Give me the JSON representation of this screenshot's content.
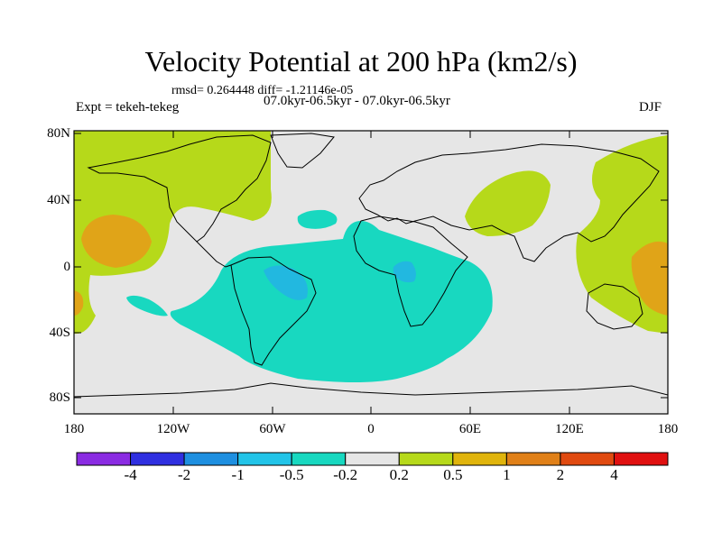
{
  "title": "Velocity Potential at 200 hPa (km2/s)",
  "stats_line": "rmsd= 0.264448 diff= -1.21146e-05",
  "experiment": "Expt = tekeh-tekeg",
  "period": "07.0kyr-06.5kyr - 07.0kyr-06.5kyr",
  "season": "DJF",
  "lat_labels": [
    "80N",
    "40N",
    "0",
    "40S",
    "80S"
  ],
  "lon_labels": [
    "180",
    "120W",
    "60W",
    "0",
    "60E",
    "120E",
    "180"
  ],
  "colorbar": {
    "labels": [
      "-4",
      "-2",
      "-1",
      "-0.5",
      "-0.2",
      "0.2",
      "0.5",
      "1",
      "2",
      "4"
    ],
    "colors": [
      "#8a2be2",
      "#2f2fe0",
      "#1e8fe0",
      "#22c4e8",
      "#18d8c0",
      "#e6e6e6",
      "#b6d91a",
      "#e0b40c",
      "#e08018",
      "#e04a10",
      "#e01010"
    ]
  },
  "map_colors": {
    "ocean_background": "#e6e6e6",
    "pos_weak": "#b6d91a",
    "pos_mid": "#e0a418",
    "neg_weak": "#18d8c0",
    "neg_mid": "#22b8e0"
  }
}
